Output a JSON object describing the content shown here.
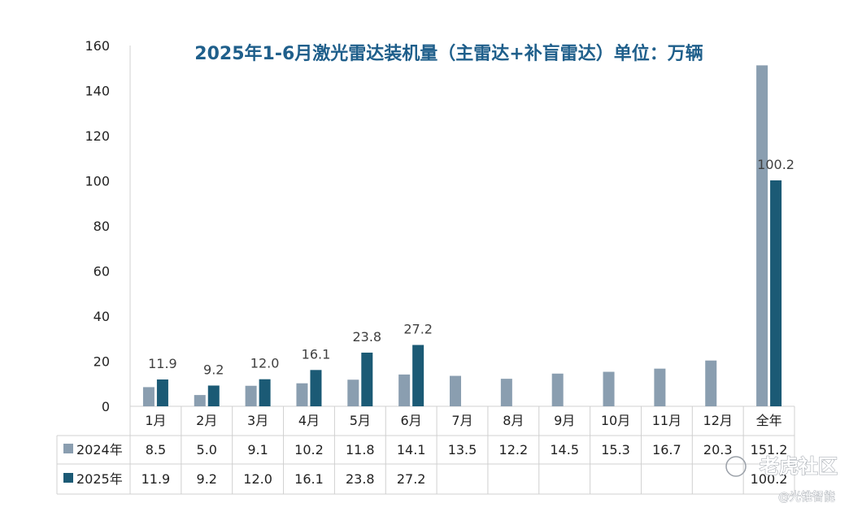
{
  "chart_data": {
    "type": "bar",
    "title": "2025年1-6月激光雷达装机量（主雷达+补盲雷达）单位：万辆",
    "categories": [
      "1月",
      "2月",
      "3月",
      "4月",
      "5月",
      "6月",
      "7月",
      "8月",
      "9月",
      "10月",
      "11月",
      "12月",
      "全年"
    ],
    "series": [
      {
        "name": "2024年",
        "values": [
          8.5,
          5.0,
          9.1,
          10.2,
          11.8,
          14.1,
          13.5,
          12.2,
          14.5,
          15.3,
          16.7,
          20.3,
          151.2
        ],
        "table_labels": [
          "8.5",
          "5.0",
          "9.1",
          "10.2",
          "11.8",
          "14.1",
          "13.5",
          "12.2",
          "14.5",
          "15.3",
          "16.7",
          "20.3",
          "151.2"
        ],
        "color": "#8a9eb0"
      },
      {
        "name": "2025年",
        "values": [
          11.9,
          9.2,
          12.0,
          16.1,
          23.8,
          27.2,
          null,
          null,
          null,
          null,
          null,
          null,
          100.2
        ],
        "table_labels": [
          "11.9",
          "9.2",
          "12.0",
          "16.1",
          "23.8",
          "27.2",
          "",
          "",
          "",
          "",
          "",
          "",
          "100.2"
        ],
        "bar_labels": [
          "11.9",
          "9.2",
          "12.0",
          "16.1",
          "23.8",
          "27.2",
          "",
          "",
          "",
          "",
          "",
          "",
          "100.2"
        ],
        "color": "#1b5a75"
      }
    ],
    "ylim": [
      0,
      160
    ],
    "yticks": [
      0,
      20,
      40,
      60,
      80,
      100,
      120,
      140,
      160
    ],
    "ytick_labels": [
      "0",
      "20",
      "40",
      "60",
      "80",
      "100",
      "120",
      "140",
      "160"
    ],
    "grid": false,
    "legend": "data-table-bottom"
  },
  "watermark": {
    "main": "老虎社区",
    "sub": "@光锥智能"
  }
}
